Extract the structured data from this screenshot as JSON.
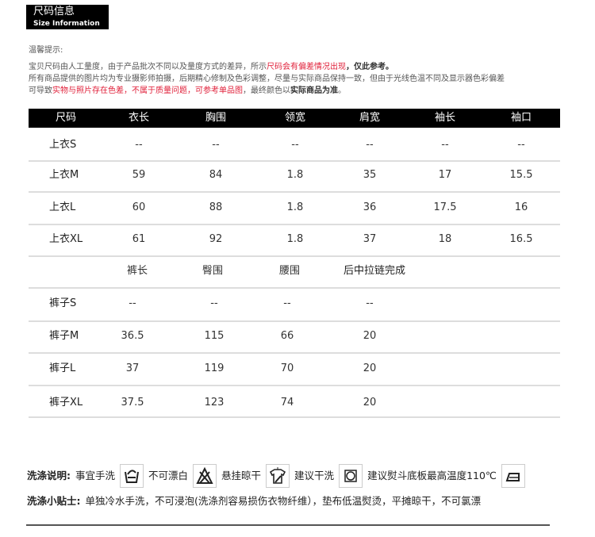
{
  "header": {
    "title_cn": "尺码信息",
    "title_en": "Size Information"
  },
  "notes": {
    "heading": "温馨提示:",
    "line1_a": "宝贝尺码由人工量度，由于产品批次不同以及量度方式的差异，所示",
    "line1_red": "尺码会有偏差情况出现",
    "line1_b": "，仅此参考。",
    "line2": "所有商品提供的图片均为专业摄影师拍摄，后期精心修制及色彩调整，尽量与实际商品保持一致，但由于光线色温不同及显示器色彩偏差",
    "line3_a": "可导致",
    "line3_red1": "实物与照片存在色差",
    "line3_red2": "，不属于质量问题",
    "line3_red3": "，可参考单品图",
    "line3_b": "，最终颜色以",
    "line3_c": "实际商品为准",
    "line3_d": "。"
  },
  "top_table": {
    "headers": [
      "尺码",
      "衣长",
      "胸围",
      "领宽",
      "肩宽",
      "袖长",
      "袖口"
    ],
    "rows": [
      [
        "上衣S",
        "--",
        "--",
        "--",
        "--",
        "--",
        "--"
      ],
      [
        "上衣M",
        "59",
        "84",
        "1.8",
        "35",
        "17",
        "15.5"
      ],
      [
        "上衣L",
        "60",
        "88",
        "1.8",
        "36",
        "17.5",
        "16"
      ],
      [
        "上衣XL",
        "61",
        "92",
        "1.8",
        "37",
        "18",
        "16.5"
      ]
    ]
  },
  "pants_table": {
    "headers": [
      "裤长",
      "臀围",
      "腰围",
      "后中拉链完成"
    ],
    "rows": [
      [
        "裤子S",
        "--",
        "--",
        "--",
        "--"
      ],
      [
        "裤子M",
        "36.5",
        "115",
        "66",
        "20"
      ],
      [
        "裤子L",
        "37",
        "119",
        "70",
        "20"
      ],
      [
        "裤子XL",
        "37.5",
        "123",
        "74",
        "20"
      ]
    ]
  },
  "care": {
    "label": "洗涤说明:",
    "items": [
      "事宜手洗",
      "不可漂白",
      "悬挂晾干",
      "建议干洗",
      "建议熨斗底板最高温度110℃"
    ],
    "icons": [
      "hand-wash-icon",
      "no-bleach-icon",
      "hang-dry-icon",
      "dry-clean-icon",
      "iron-icon"
    ],
    "tips_label": "洗涤小贴士:",
    "tips": "单独冷水手洗，不可浸泡(洗涤剂容易损伤衣物纤维），垫布低温熨烫，平摊晾干，不可氯漂"
  }
}
